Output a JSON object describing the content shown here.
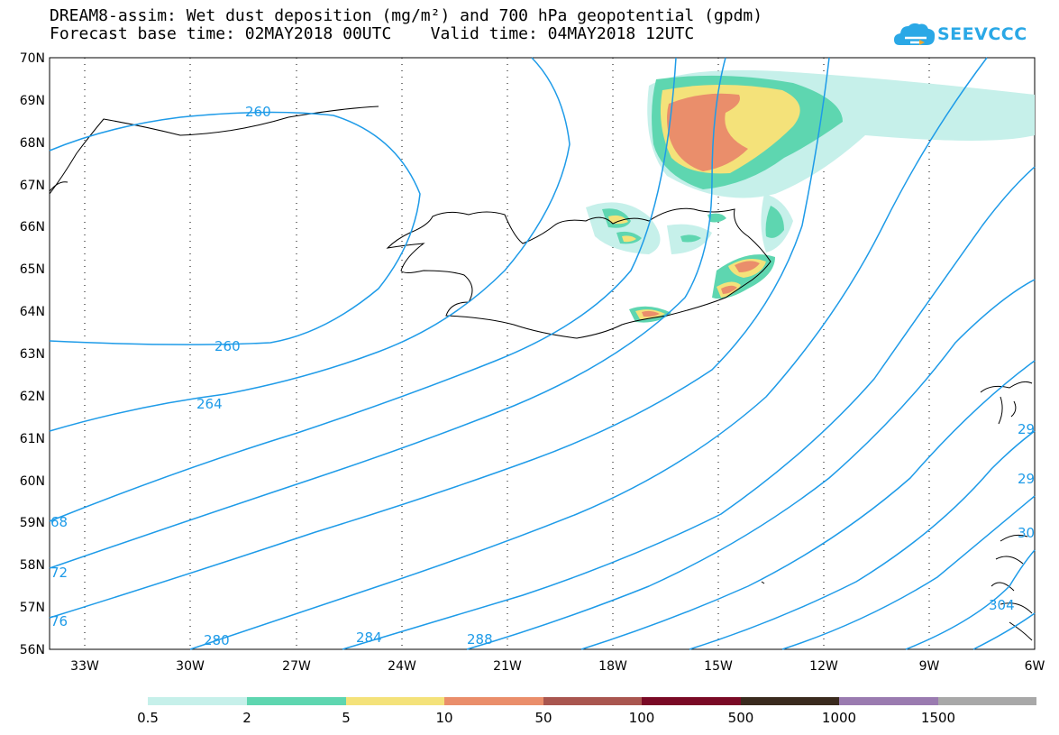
{
  "title": {
    "line1": "DREAM8-assim: Wet dust deposition (mg/m²) and 700 hPa geopotential (gpdm)",
    "line2": "Forecast base time: 02MAY2018 00UTC    Valid time: 04MAY2018 12UTC"
  },
  "logo": {
    "text": "SEEVCCC",
    "icon": "cloud-logo-icon",
    "color": "#2aa8e6"
  },
  "axes": {
    "lat_labels": [
      "70N",
      "69N",
      "68N",
      "67N",
      "66N",
      "65N",
      "64N",
      "63N",
      "62N",
      "61N",
      "60N",
      "59N",
      "58N",
      "57N",
      "56N"
    ],
    "lon_labels": [
      "33W",
      "30W",
      "27W",
      "24W",
      "21W",
      "18W",
      "15W",
      "12W",
      "9W",
      "6W"
    ]
  },
  "contours": {
    "color": "#1e9be8",
    "labels": [
      "260",
      "260",
      "264",
      "68",
      "72",
      "76",
      "280",
      "284",
      "288",
      "29",
      "29",
      "30",
      "304"
    ]
  },
  "legend": {
    "colors": [
      "#c6f0ea",
      "#5ed6b0",
      "#f4e27a",
      "#ea8e6b",
      "#a9564f",
      "#7a0a26",
      "#3a2a1e",
      "#9a7bb0",
      "#a8a8a8"
    ],
    "labels": [
      "0.5",
      "2",
      "5",
      "10",
      "50",
      "100",
      "500",
      "1000",
      "1500"
    ]
  }
}
